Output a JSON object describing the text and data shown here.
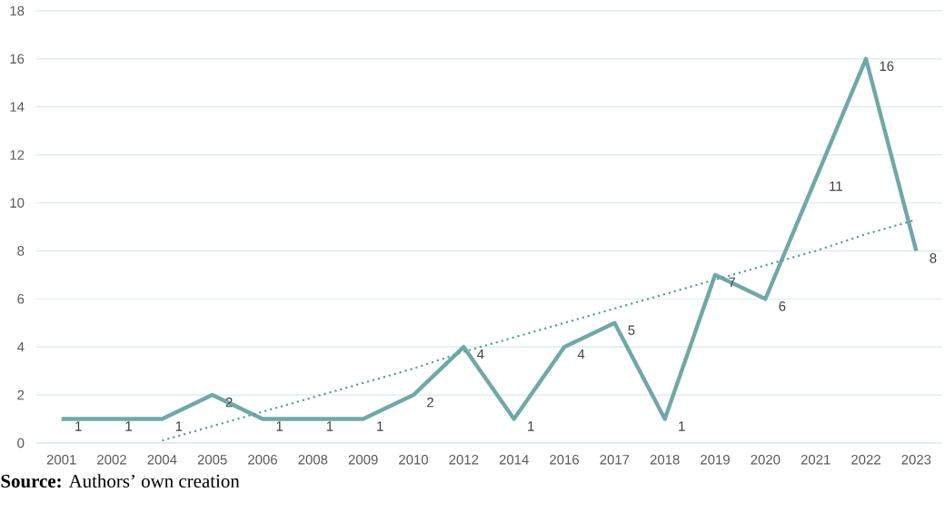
{
  "chart_data": {
    "type": "line",
    "categories": [
      "2001",
      "2002",
      "2004",
      "2005",
      "2006",
      "2008",
      "2009",
      "2010",
      "2012",
      "2014",
      "2016",
      "2017",
      "2018",
      "2019",
      "2020",
      "2021",
      "2022",
      "2023"
    ],
    "series": [
      {
        "color": "#70a8a7",
        "values": [
          1,
          1,
          1,
          2,
          1,
          1,
          1,
          2,
          4,
          1,
          4,
          5,
          1,
          7,
          6,
          11,
          16,
          8
        ],
        "value_labels": [
          "1",
          "1",
          "1",
          "2",
          "1",
          "1",
          "1",
          "2",
          "4",
          "1",
          "4",
          "5",
          "1",
          "7",
          "6",
          "11",
          "16",
          "8"
        ]
      },
      {
        "type": "line",
        "color": "#5a9e9c",
        "line_style": "dotted",
        "values": [
          null,
          null,
          0.1,
          0.7,
          1.3,
          1.9,
          2.5,
          3.1,
          3.8,
          4.4,
          5.0,
          5.6,
          6.2,
          6.8,
          7.4,
          8.0,
          8.7,
          9.3
        ]
      }
    ],
    "ylim": [
      0,
      18
    ],
    "yticks": [
      0,
      2,
      4,
      6,
      8,
      10,
      12,
      14,
      16,
      18
    ],
    "grid": "y",
    "marker": "none",
    "annotations": [
      "**Source:** Authors’ own creation"
    ]
  }
}
